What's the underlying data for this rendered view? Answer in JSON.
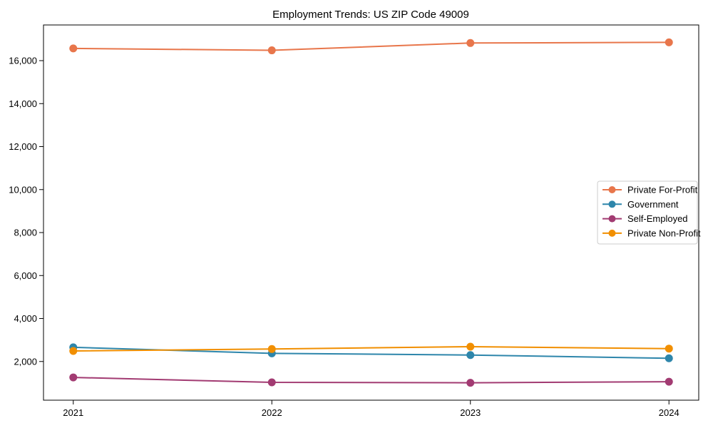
{
  "chart_data": {
    "type": "line",
    "title": "Employment Trends: US ZIP Code 49009",
    "xlabel": "",
    "ylabel": "",
    "x": [
      2021,
      2022,
      2023,
      2024
    ],
    "x_tick_labels": [
      "2021",
      "2022",
      "2023",
      "2024"
    ],
    "series": [
      {
        "name": "Private For-Profit",
        "color": "#E8764B",
        "values": [
          16570,
          16480,
          16820,
          16850
        ]
      },
      {
        "name": "Government",
        "color": "#2E86AB",
        "values": [
          2660,
          2380,
          2300,
          2150
        ]
      },
      {
        "name": "Self-Employed",
        "color": "#A23B72",
        "values": [
          1260,
          1030,
          1010,
          1060
        ]
      },
      {
        "name": "Private Non-Profit",
        "color": "#F18F01",
        "values": [
          2490,
          2580,
          2690,
          2600
        ]
      }
    ],
    "xlim": [
      2020.85,
      2024.15
    ],
    "ylim": [
      200,
      17660
    ],
    "yticks": [
      2000,
      4000,
      6000,
      8000,
      10000,
      12000,
      14000,
      16000
    ],
    "y_tick_labels": [
      "2,000",
      "4,000",
      "6,000",
      "8,000",
      "10,000",
      "12,000",
      "14,000",
      "16,000"
    ],
    "grid": false,
    "marker": "circle",
    "legend_position": "center right",
    "legend_border_color": "#cccccc",
    "background_color": "#ffffff",
    "spine_color": "#000000"
  }
}
